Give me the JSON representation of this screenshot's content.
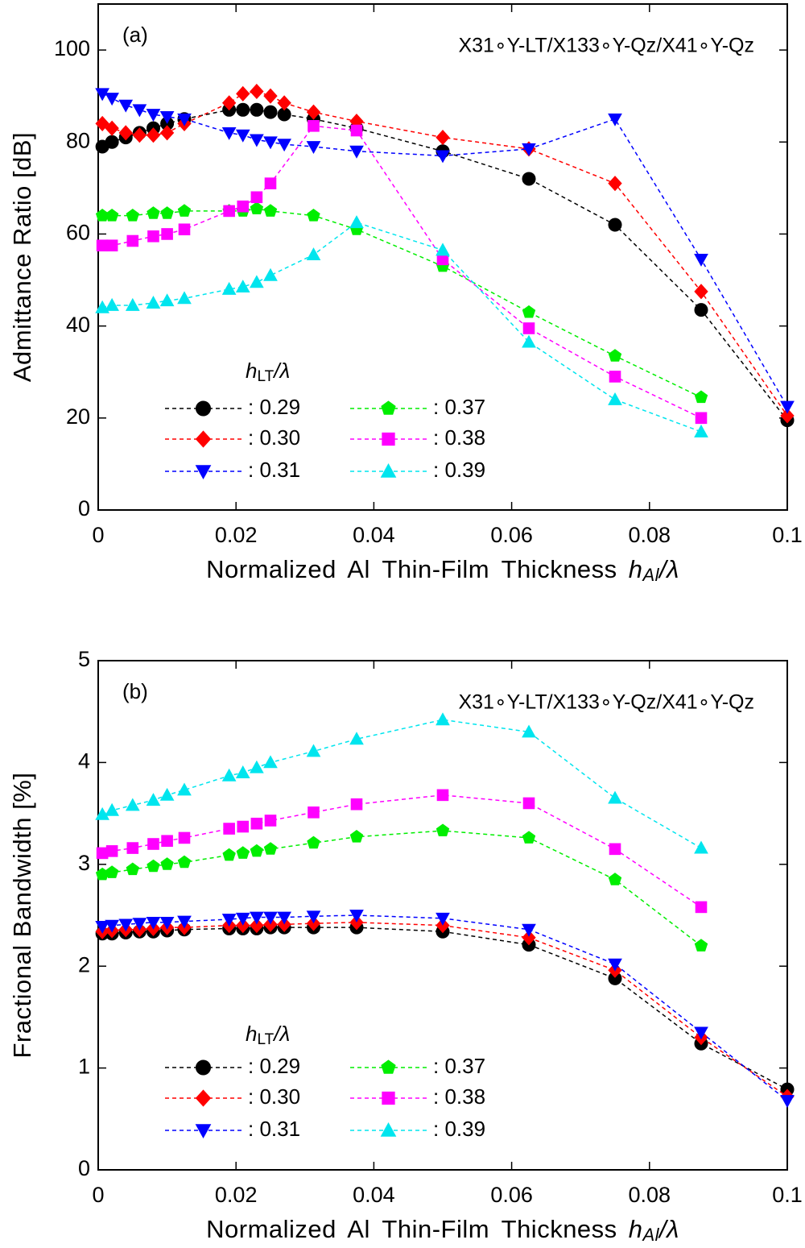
{
  "chart_data": [
    {
      "type": "line",
      "annotation": "(a)",
      "subtitle": "X31∘Y-LT/X133∘Y-Qz/X41∘Y-Qz",
      "ylabel": "Admittance Ratio [dB]",
      "xlabel": {
        "text": "Normalized Al Thin-Film Thickness",
        "var": "h",
        "sub": "Al",
        "tail": "/λ"
      },
      "legend_title": {
        "var": "h",
        "sub": "LT",
        "tail": "/λ"
      },
      "xlim": [
        0,
        0.1
      ],
      "ylim": [
        0,
        110
      ],
      "xticks": [
        0,
        0.02,
        0.04,
        0.06,
        0.08,
        0.1
      ],
      "yticks": [
        0,
        20,
        40,
        60,
        80,
        100
      ],
      "series": [
        {
          "name": ": 0.29",
          "color": "#000000",
          "marker": "circle",
          "x": [
            0.0006,
            0.002,
            0.004,
            0.006,
            0.008,
            0.01,
            0.0125,
            0.019,
            0.021,
            0.023,
            0.025,
            0.027,
            0.03125,
            0.0375,
            0.05,
            0.0625,
            0.075,
            0.0875,
            0.1
          ],
          "values": [
            79,
            80,
            81,
            82,
            83,
            84,
            85,
            87,
            87,
            87,
            86.5,
            86,
            85,
            83,
            78,
            72,
            62,
            43.5,
            19.5
          ]
        },
        {
          "name": ": 0.30",
          "color": "#ff0000",
          "marker": "diamond",
          "x": [
            0.0006,
            0.002,
            0.004,
            0.006,
            0.008,
            0.01,
            0.0125,
            0.019,
            0.021,
            0.023,
            0.025,
            0.027,
            0.03125,
            0.0375,
            0.05,
            0.0625,
            0.075,
            0.0875,
            0.1
          ],
          "values": [
            84,
            83,
            82,
            81.5,
            81.5,
            82,
            84,
            88.5,
            90.5,
            91,
            90,
            88.5,
            86.5,
            84.5,
            81,
            78.5,
            71,
            47.5,
            20.5
          ]
        },
        {
          "name": ": 0.31",
          "color": "#0000ff",
          "marker": "tri-down",
          "x": [
            0.0006,
            0.002,
            0.004,
            0.006,
            0.008,
            0.01,
            0.0125,
            0.019,
            0.021,
            0.023,
            0.025,
            0.027,
            0.03125,
            0.0375,
            0.05,
            0.0625,
            0.075,
            0.0875,
            0.1
          ],
          "values": [
            90.5,
            89.5,
            88,
            87,
            86,
            85.5,
            85,
            82,
            81.5,
            80.5,
            80,
            79.5,
            79,
            78,
            77,
            78.5,
            85,
            54.5,
            22.5
          ]
        },
        {
          "name": ": 0.37",
          "color": "#00ee00",
          "marker": "pentagon",
          "x": [
            0.0006,
            0.002,
            0.005,
            0.008,
            0.01,
            0.0125,
            0.019,
            0.021,
            0.023,
            0.025,
            0.03125,
            0.0375,
            0.05,
            0.0625,
            0.075,
            0.0875
          ],
          "values": [
            64,
            64,
            64,
            64.5,
            64.5,
            65,
            65,
            65,
            65.5,
            65,
            64,
            61,
            53,
            43,
            33.5,
            24.5
          ]
        },
        {
          "name": ": 0.38",
          "color": "#ff00ff",
          "marker": "square",
          "x": [
            0.0006,
            0.002,
            0.005,
            0.008,
            0.01,
            0.0125,
            0.019,
            0.021,
            0.023,
            0.025,
            0.03125,
            0.0375,
            0.05,
            0.0625,
            0.075,
            0.0875
          ],
          "values": [
            57.5,
            57.5,
            58.5,
            59.5,
            60,
            61,
            65,
            66,
            68,
            71,
            83.5,
            82.5,
            54.5,
            39.5,
            29,
            20
          ]
        },
        {
          "name": ": 0.39",
          "color": "#00e5ee",
          "marker": "tri-up",
          "x": [
            0.0006,
            0.002,
            0.005,
            0.008,
            0.01,
            0.0125,
            0.019,
            0.021,
            0.023,
            0.025,
            0.03125,
            0.0375,
            0.05,
            0.0625,
            0.075,
            0.0875
          ],
          "values": [
            44,
            44.5,
            44.5,
            45,
            45.5,
            46,
            48,
            48.5,
            49.5,
            51,
            55.5,
            62.5,
            56.5,
            36.5,
            24,
            17
          ]
        }
      ]
    },
    {
      "type": "line",
      "annotation": "(b)",
      "subtitle": "X31∘Y-LT/X133∘Y-Qz/X41∘Y-Qz",
      "ylabel": "Fractional Bandwidth [%]",
      "xlabel": {
        "text": "Normalized Al Thin-Film Thickness",
        "var": "h",
        "sub": "Al",
        "tail": "/λ"
      },
      "legend_title": {
        "var": "h",
        "sub": "LT",
        "tail": "/λ"
      },
      "xlim": [
        0,
        0.1
      ],
      "ylim": [
        0,
        5
      ],
      "xticks": [
        0,
        0.02,
        0.04,
        0.06,
        0.08,
        0.1
      ],
      "yticks": [
        0,
        1,
        2,
        3,
        4,
        5
      ],
      "series": [
        {
          "name": ": 0.29",
          "color": "#000000",
          "marker": "circle",
          "x": [
            0.0006,
            0.002,
            0.004,
            0.006,
            0.008,
            0.01,
            0.0125,
            0.019,
            0.021,
            0.023,
            0.025,
            0.027,
            0.03125,
            0.0375,
            0.05,
            0.0625,
            0.075,
            0.0875,
            0.1
          ],
          "values": [
            2.32,
            2.32,
            2.33,
            2.34,
            2.34,
            2.35,
            2.36,
            2.37,
            2.37,
            2.37,
            2.38,
            2.38,
            2.38,
            2.38,
            2.34,
            2.21,
            1.88,
            1.24,
            0.79
          ]
        },
        {
          "name": ": 0.30",
          "color": "#ff0000",
          "marker": "diamond",
          "x": [
            0.0006,
            0.002,
            0.004,
            0.006,
            0.008,
            0.01,
            0.0125,
            0.019,
            0.021,
            0.023,
            0.025,
            0.027,
            0.03125,
            0.0375,
            0.05,
            0.0625,
            0.075,
            0.0875,
            0.1
          ],
          "values": [
            2.34,
            2.35,
            2.36,
            2.36,
            2.37,
            2.38,
            2.38,
            2.4,
            2.4,
            2.4,
            2.41,
            2.41,
            2.42,
            2.43,
            2.4,
            2.28,
            1.96,
            1.3,
            0.72
          ]
        },
        {
          "name": ": 0.31",
          "color": "#0000ff",
          "marker": "tri-down",
          "x": [
            0.0006,
            0.002,
            0.004,
            0.006,
            0.008,
            0.01,
            0.0125,
            0.019,
            0.021,
            0.023,
            0.025,
            0.027,
            0.03125,
            0.0375,
            0.05,
            0.0625,
            0.075,
            0.0875,
            0.1
          ],
          "values": [
            2.39,
            2.4,
            2.41,
            2.42,
            2.43,
            2.43,
            2.44,
            2.46,
            2.47,
            2.48,
            2.48,
            2.48,
            2.49,
            2.5,
            2.47,
            2.36,
            2.02,
            1.35,
            0.68
          ]
        },
        {
          "name": ": 0.37",
          "color": "#00ee00",
          "marker": "pentagon",
          "x": [
            0.0006,
            0.002,
            0.005,
            0.008,
            0.01,
            0.0125,
            0.019,
            0.021,
            0.023,
            0.025,
            0.03125,
            0.0375,
            0.05,
            0.0625,
            0.075,
            0.0875
          ],
          "values": [
            2.9,
            2.92,
            2.95,
            2.98,
            3,
            3.02,
            3.09,
            3.11,
            3.13,
            3.15,
            3.21,
            3.27,
            3.33,
            3.26,
            2.85,
            2.2
          ]
        },
        {
          "name": ": 0.38",
          "color": "#ff00ff",
          "marker": "square",
          "x": [
            0.0006,
            0.002,
            0.005,
            0.008,
            0.01,
            0.0125,
            0.019,
            0.021,
            0.023,
            0.025,
            0.03125,
            0.0375,
            0.05,
            0.0625,
            0.075,
            0.0875
          ],
          "values": [
            3.11,
            3.13,
            3.16,
            3.2,
            3.23,
            3.26,
            3.35,
            3.37,
            3.4,
            3.43,
            3.51,
            3.59,
            3.68,
            3.6,
            3.15,
            2.58
          ]
        },
        {
          "name": ": 0.39",
          "color": "#00e5ee",
          "marker": "tri-up",
          "x": [
            0.0006,
            0.002,
            0.005,
            0.008,
            0.01,
            0.0125,
            0.019,
            0.021,
            0.023,
            0.025,
            0.03125,
            0.0375,
            0.05,
            0.0625,
            0.075,
            0.0875
          ],
          "values": [
            3.49,
            3.53,
            3.58,
            3.63,
            3.68,
            3.73,
            3.87,
            3.9,
            3.95,
            4,
            4.11,
            4.23,
            4.42,
            4.3,
            3.65,
            3.16
          ]
        }
      ]
    }
  ]
}
